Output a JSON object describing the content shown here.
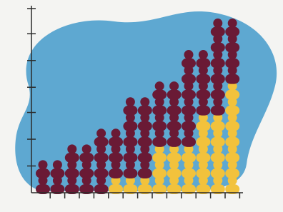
{
  "chart_data": {
    "type": "pictograph",
    "categories": [
      null,
      null,
      null,
      null,
      null,
      null,
      null,
      null,
      null,
      null,
      null,
      null,
      null,
      null
    ],
    "series": [
      {
        "color": "#f2c23c",
        "values": [
          0,
          0,
          0,
          0,
          0,
          1,
          1,
          1,
          3,
          3,
          3,
          5,
          5,
          7
        ]
      },
      {
        "color": "#6a1a35",
        "values": [
          2,
          2,
          3,
          3,
          4,
          3,
          5,
          5,
          4,
          4,
          6,
          4,
          6,
          4
        ]
      }
    ],
    "ylim": [
      0,
      11.7
    ],
    "yticks": [
      1.7,
      3.4,
      5.1,
      6.7,
      8.4,
      10.1,
      11.7
    ],
    "background_color": "#5ea8d1",
    "axis_color": "#2b2b2b"
  }
}
